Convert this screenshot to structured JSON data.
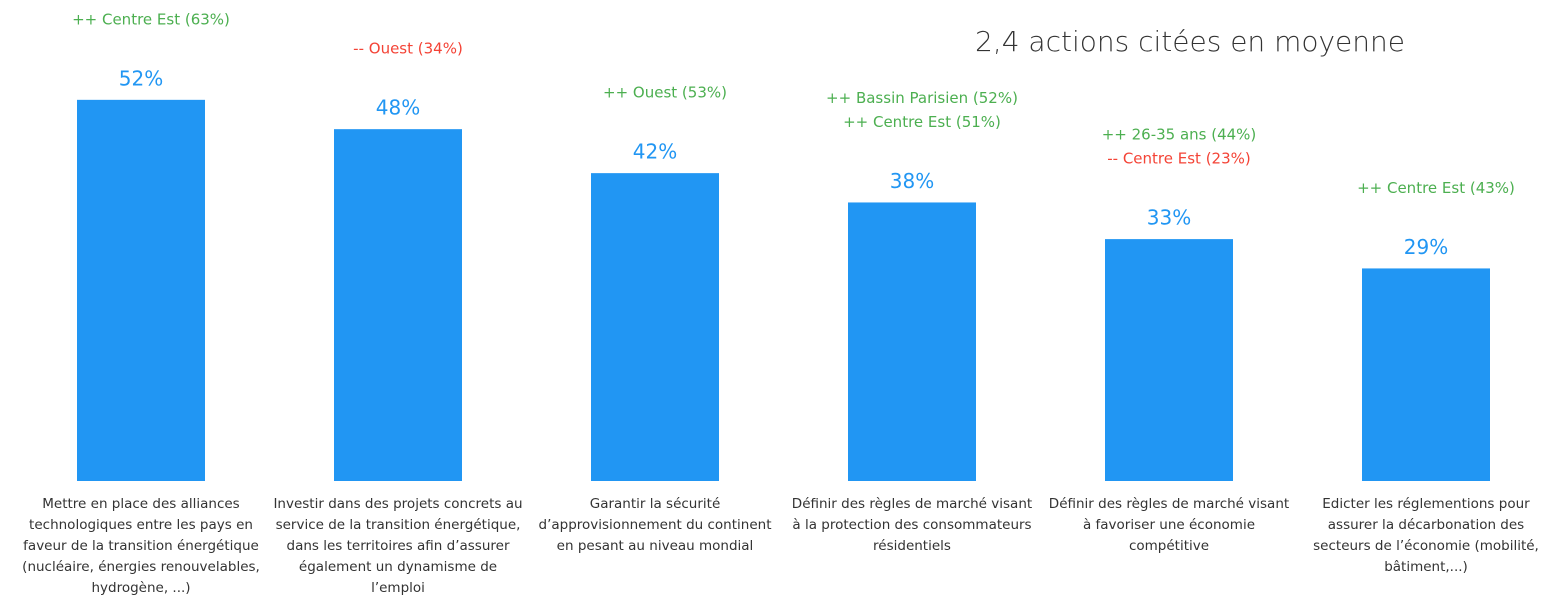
{
  "chart_data": {
    "type": "bar",
    "subtitle": "2,4 actions citées en moyenne",
    "categories": [
      "Mettre en place des alliances technologiques entre les pays en faveur de la transition énergétique (nucléaire, énergies renouvelables, hydrogène, ...)",
      "Investir dans des projets concrets au service de la transition énergétique, dans les territoires afin d’assurer également un dynamisme de l’emploi",
      "Garantir la sécurité d’approvisionnement du continent en pesant au niveau mondial",
      "Définir des règles de marché visant à la protection des consommateurs résidentiels",
      "Définir des règles de marché visant à favoriser une économie compétitive",
      "Edicter les réglementions pour assurer la décarbonation des secteurs de l’économie (mobilité, bâtiment,...)"
    ],
    "values": [
      52,
      48,
      42,
      38,
      33,
      29
    ],
    "value_labels": [
      "52%",
      "48%",
      "42%",
      "38%",
      "33%",
      "29%"
    ],
    "color": "#2196f3",
    "annotations": [
      [
        {
          "text": "++ Centre Est (63%)",
          "color": "#4caf50"
        }
      ],
      [
        {
          "text": "-- Ouest (34%)",
          "color": "#f44336"
        }
      ],
      [
        {
          "text": "++ Ouest (53%)",
          "color": "#4caf50"
        }
      ],
      [
        {
          "text": "++ Bassin Parisien (52%)",
          "color": "#4caf50"
        },
        {
          "text": "++ Centre Est (51%)",
          "color": "#4caf50"
        }
      ],
      [
        {
          "text": "++ 26-35 ans (44%)",
          "color": "#4caf50"
        },
        {
          "text": "-- Centre Est (23%)",
          "color": "#f44336"
        }
      ],
      [
        {
          "text": "++ Centre Est (43%)",
          "color": "#4caf50"
        }
      ]
    ]
  }
}
